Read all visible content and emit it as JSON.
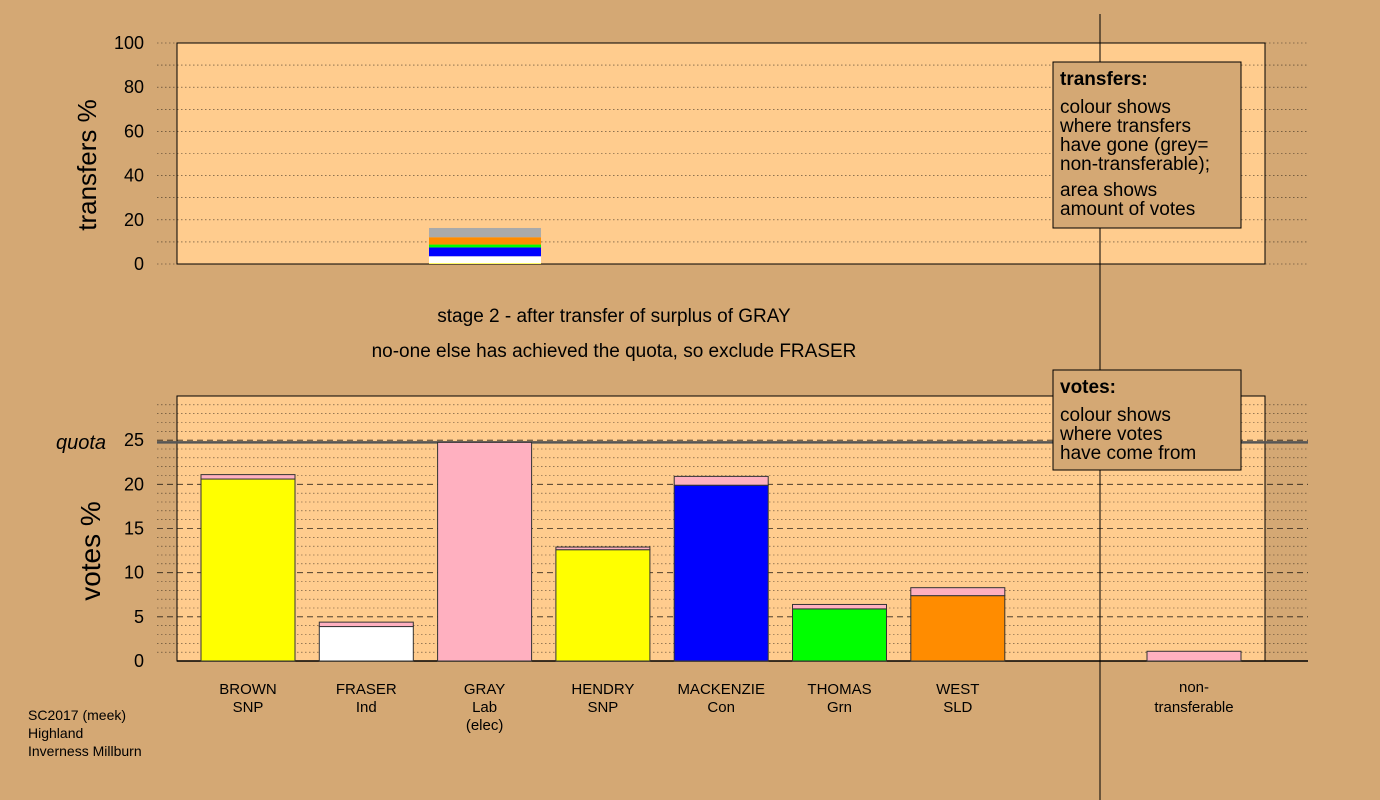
{
  "chart_data": [
    {
      "type": "bar",
      "name": "transfers",
      "ylabel": "transfers %",
      "ylim": [
        0,
        100
      ],
      "yticks": [
        0,
        20,
        40,
        60,
        80,
        100
      ],
      "grid": true,
      "bars": [
        {
          "category": "GRAY",
          "segments": [
            {
              "source": "WEST",
              "value": 0.3,
              "color": "#FFFF00"
            },
            {
              "source": "FRASER",
              "value": 3.2,
              "color": "#FFFFFF"
            },
            {
              "source": "MACKENZIE",
              "value": 4.0,
              "color": "#0000FF"
            },
            {
              "source": "THOMAS",
              "value": 1.3,
              "color": "#00FF00"
            },
            {
              "source": "WEST",
              "value": 3.3,
              "color": "#FF8C00"
            },
            {
              "source": "non-transferable",
              "value": 4.2,
              "color": "#AAAAAA"
            }
          ]
        }
      ],
      "legend": {
        "title": "transfers:",
        "lines1": [
          "colour shows",
          "where transfers",
          "have gone (grey=",
          "non-transferable);"
        ],
        "lines2": [
          "area shows",
          "amount of votes"
        ]
      }
    },
    {
      "type": "bar",
      "name": "votes",
      "ylabel": "votes %",
      "ylim": [
        0,
        30
      ],
      "yticks": [
        0,
        5,
        10,
        15,
        20,
        25
      ],
      "quota_label": "quota",
      "quota": 24.75,
      "categories": [
        {
          "name": "BROWN",
          "party": "SNP",
          "extra": "",
          "segments": [
            {
              "value": 20.6,
              "color": "#FFFF00"
            },
            {
              "value": 0.5,
              "color": "#FFB0C0"
            }
          ]
        },
        {
          "name": "FRASER",
          "party": "Ind",
          "extra": "",
          "segments": [
            {
              "value": 3.9,
              "color": "#FFFFFF"
            },
            {
              "value": 0.5,
              "color": "#FFB0C0"
            }
          ]
        },
        {
          "name": "GRAY",
          "party": "Lab",
          "extra": "(elec)",
          "segments": [
            {
              "value": 24.75,
              "color": "#FFB0C0"
            }
          ]
        },
        {
          "name": "HENDRY",
          "party": "SNP",
          "extra": "",
          "segments": [
            {
              "value": 12.6,
              "color": "#FFFF00"
            },
            {
              "value": 0.3,
              "color": "#FFB0C0"
            }
          ]
        },
        {
          "name": "MACKENZIE",
          "party": "Con",
          "extra": "",
          "segments": [
            {
              "value": 19.9,
              "color": "#0000FF"
            },
            {
              "value": 1.0,
              "color": "#FFB0C0"
            }
          ]
        },
        {
          "name": "THOMAS",
          "party": "Grn",
          "extra": "",
          "segments": [
            {
              "value": 5.9,
              "color": "#00FF00"
            },
            {
              "value": 0.5,
              "color": "#FFB0C0"
            }
          ]
        },
        {
          "name": "WEST",
          "party": "SLD",
          "extra": "",
          "segments": [
            {
              "value": 7.4,
              "color": "#FF8C00"
            },
            {
              "value": 0.9,
              "color": "#FFB0C0"
            }
          ]
        }
      ],
      "nontransferable": {
        "label1": "non-",
        "label2": "transferable",
        "value": 1.1,
        "color": "#FFB0C0"
      },
      "legend": {
        "title": "votes:",
        "lines": [
          "colour shows",
          "where votes",
          "have come from"
        ]
      }
    }
  ],
  "stage_line1": "stage 2 - after transfer of surplus of GRAY",
  "stage_line2": "no-one else has achieved the quota, so exclude FRASER",
  "footer": [
    "SC2017 (meek)",
    "Highland",
    "Inverness Millburn"
  ],
  "colors": {
    "background": "#D4A874",
    "plot_bg": "#FFCC8E"
  }
}
